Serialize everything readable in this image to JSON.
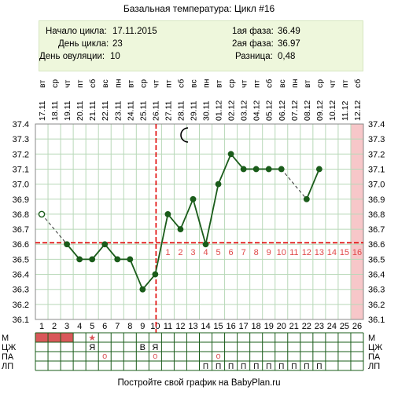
{
  "title": "Базальная температура: Цикл #16",
  "info": {
    "start_label": "Начало цикла:",
    "start_value": "17.11.2015",
    "day_label": "День цикла:",
    "day_value": "23",
    "ovul_label": "День овуляции:",
    "ovul_value": "10",
    "phase1_label": "1ая фаза:",
    "phase1_value": "36.49",
    "phase2_label": "2ая фаза:",
    "phase2_value": "36.97",
    "diff_label": "Разница:",
    "diff_value": "0,48"
  },
  "footer": "Постройте свой график на BabyPlan.ru",
  "colors": {
    "line": "#1a5c1a",
    "grid": "#b8d8b8",
    "coverline": "#e00000",
    "menses": "#d9585a",
    "pink_col": "#f7c7c9",
    "phase2_numbers": "#e04848"
  },
  "chart_data": {
    "type": "line",
    "ylim": [
      36.1,
      37.4
    ],
    "yticks": [
      "37.4",
      "37.3",
      "37.2",
      "37.1",
      "37.0",
      "36.9",
      "36.8",
      "36.7",
      "36.6",
      "36.5",
      "36.4",
      "36.3",
      "36.2",
      "36.1"
    ],
    "days": [
      1,
      2,
      3,
      4,
      5,
      6,
      7,
      8,
      9,
      10,
      11,
      12,
      13,
      14,
      15,
      16,
      17,
      18,
      19,
      20,
      21,
      22,
      23,
      24,
      25,
      26
    ],
    "dates": [
      "17.11",
      "18.11",
      "19.11",
      "20.11",
      "21.11",
      "22.11",
      "23.11",
      "24.11",
      "25.11",
      "26.11",
      "27.11",
      "28.11",
      "29.11",
      "30.11",
      "01.12",
      "02.12",
      "03.12",
      "04.12",
      "05.12",
      "06.12",
      "07.12",
      "08.12",
      "09.12",
      "10.12",
      "11.12",
      "12.12"
    ],
    "weekdays": [
      "вт",
      "ср",
      "чт",
      "пт",
      "сб",
      "вс",
      "пн",
      "вт",
      "ср",
      "чт",
      "пт",
      "сб",
      "вс",
      "пн",
      "вт",
      "ср",
      "чт",
      "пт",
      "сб",
      "вс",
      "пн",
      "вт",
      "ср",
      "чт",
      "пт",
      "сб"
    ],
    "temperatures": [
      36.8,
      null,
      36.6,
      36.5,
      36.5,
      36.6,
      36.5,
      36.5,
      36.3,
      36.4,
      36.8,
      36.7,
      36.9,
      36.6,
      37.0,
      37.2,
      37.1,
      37.1,
      37.1,
      37.1,
      null,
      36.9,
      37.1,
      null,
      null,
      null
    ],
    "excluded_days": [
      1
    ],
    "coverline": 36.61,
    "ovulation_day": 10,
    "luteal_day_numbers": [
      "1",
      "2",
      "3",
      "4",
      "5",
      "6",
      "7",
      "8",
      "9",
      "10",
      "11",
      "12",
      "13",
      "14",
      "15",
      "16"
    ],
    "highlight_day": 26,
    "row_labels": [
      "М",
      "ЦЖ",
      "ПА",
      "ЛП"
    ],
    "menses_days": [
      1,
      2,
      3
    ],
    "star_day": 5,
    "star_glyph": "★",
    "cm_marks": [
      {
        "day": 5,
        "text": "Я"
      },
      {
        "day": 9,
        "text": "В"
      },
      {
        "day": 10,
        "text": "Я"
      }
    ],
    "pa_days": [
      6,
      10,
      15
    ],
    "pa_glyph": "о",
    "lp_days": [
      14,
      15,
      16,
      17,
      18,
      19,
      20,
      21,
      22,
      23
    ],
    "lp_glyph": "П"
  }
}
